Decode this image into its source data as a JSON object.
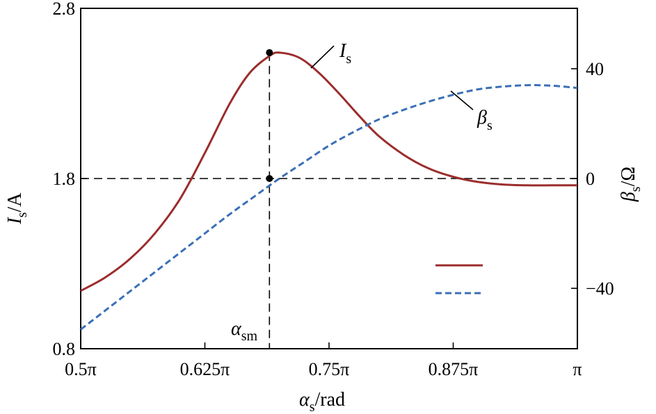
{
  "chart_data": {
    "type": "line",
    "x_axis": {
      "label": "α",
      "label_sub": "s",
      "label_suffix": "/rad",
      "ticks": [
        {
          "value": 0.5,
          "label": "0.5π"
        },
        {
          "value": 0.625,
          "label": "0.625π"
        },
        {
          "value": 0.75,
          "label": "0.75π"
        },
        {
          "value": 0.875,
          "label": "0.875π"
        },
        {
          "value": 1.0,
          "label": "π"
        }
      ],
      "range": [
        0.5,
        1.0
      ],
      "unit_note": "x values in multiples of π rad"
    },
    "y_axis_left": {
      "label": "I",
      "label_sub": "s",
      "label_suffix": "/A",
      "ticks": [
        {
          "value": 0.8,
          "label": "0.8"
        },
        {
          "value": 1.8,
          "label": "1.8"
        },
        {
          "value": 2.8,
          "label": "2.8"
        }
      ],
      "range": [
        0.8,
        2.8
      ]
    },
    "y_axis_right": {
      "label": "β",
      "label_sub": "s",
      "label_suffix": "/Ω",
      "ticks": [
        {
          "value": 40,
          "label": "40"
        },
        {
          "value": 0,
          "label": "0"
        },
        {
          "value": -40,
          "label": "−40"
        }
      ],
      "range": [
        -62,
        62
      ]
    },
    "series": [
      {
        "name": "I_s",
        "axis": "left",
        "color": "#9b2d2d",
        "dash": "solid",
        "x": [
          0.5,
          0.525,
          0.55,
          0.575,
          0.6,
          0.625,
          0.65,
          0.67,
          0.69,
          0.7,
          0.72,
          0.74,
          0.76,
          0.78,
          0.8,
          0.825,
          0.85,
          0.875,
          0.9,
          0.925,
          0.95,
          0.975,
          1.0
        ],
        "y": [
          1.14,
          1.22,
          1.33,
          1.48,
          1.68,
          1.95,
          2.24,
          2.42,
          2.52,
          2.54,
          2.51,
          2.42,
          2.3,
          2.17,
          2.05,
          1.94,
          1.86,
          1.81,
          1.78,
          1.765,
          1.76,
          1.76,
          1.76
        ]
      },
      {
        "name": "β_s",
        "axis": "right",
        "color": "#3b6fb6",
        "dash": "dashed",
        "x": [
          0.5,
          0.525,
          0.55,
          0.575,
          0.6,
          0.625,
          0.65,
          0.675,
          0.7,
          0.725,
          0.75,
          0.775,
          0.8,
          0.825,
          0.85,
          0.875,
          0.9,
          0.925,
          0.95,
          0.975,
          1.0
        ],
        "y": [
          -55,
          -48,
          -41,
          -34,
          -27,
          -20,
          -13,
          -6.5,
          0,
          6,
          12,
          17,
          21.5,
          25,
          28,
          30.5,
          32.5,
          33.5,
          34,
          33.8,
          33
        ]
      }
    ],
    "annotations": {
      "is_label": "I",
      "is_label_sub": "s",
      "beta_label": "β",
      "beta_label_sub": "s",
      "alpha_sm": "α",
      "alpha_sm_sub": "sm",
      "alpha_sm_x": 0.69,
      "peak_point": {
        "x": 0.69,
        "y": 2.54
      },
      "zero_point": {
        "x": 0.69,
        "y": 1.8
      },
      "reference_y_left": 1.8
    },
    "legend": {
      "placement": "bottom-right",
      "entries": [
        "",
        ""
      ]
    },
    "grid": false
  }
}
